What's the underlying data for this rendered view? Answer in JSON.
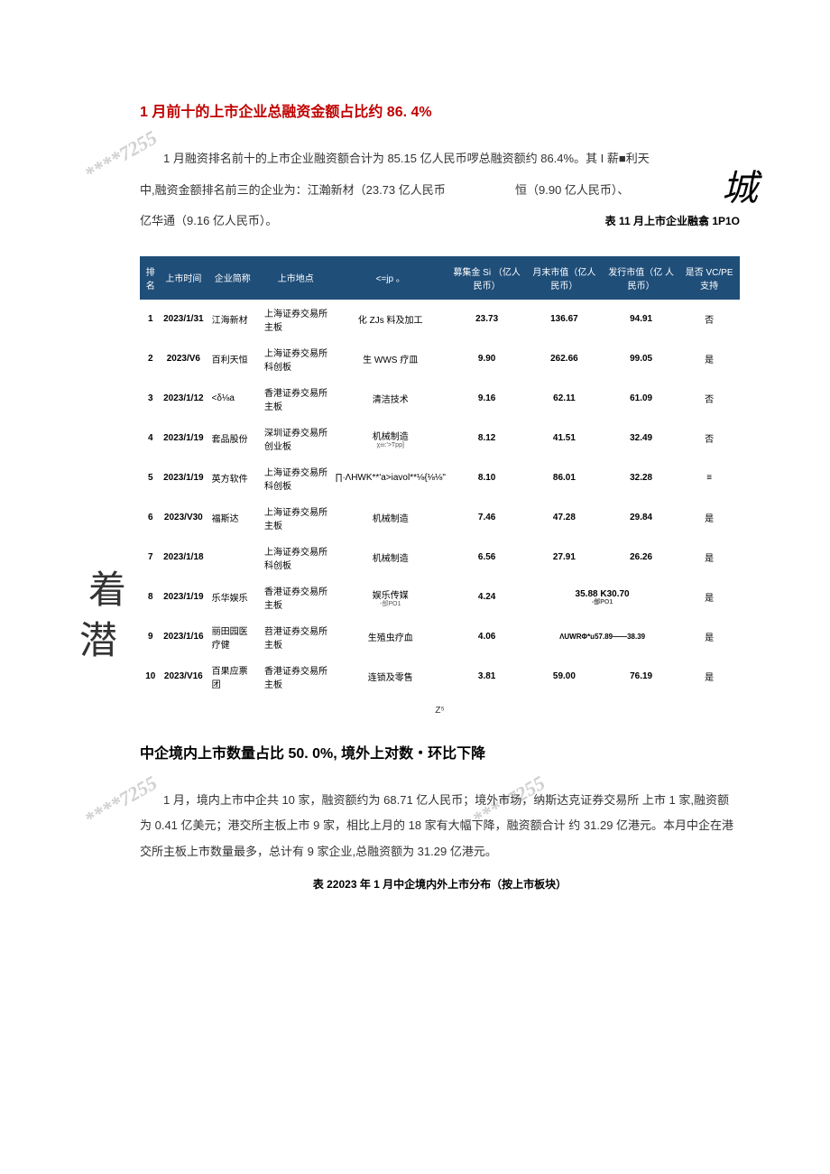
{
  "watermark_text": "****7255",
  "decor": {
    "city_glyph": "城",
    "zhuo_glyph": "着",
    "qian_glyph": "潜"
  },
  "section1": {
    "heading": "1 月前十的上市企业总融资金额占比约 86. 4%",
    "para1_a": "1 月融资排名前十的上市企业融资额合计为 85.15 亿人民币啰总融资额约 86.4%。其 I 薪■利天",
    "para1_b": "中,融资金额排名前三的企业为：江瀚新材（23.73 亿人民币",
    "para1_c": "恒（9.90 亿人民币）、",
    "para1_d": "亿华通（9.16 亿人民币）。",
    "table_caption": "表 11 月上市企业融翕 1P1O"
  },
  "table1": {
    "headers": [
      "排名",
      "上市时间",
      "企业简称",
      "上市地点",
      "<=jp\n。",
      "募集金 Si\n（亿人民币）",
      "月末市值（亿人\n民币）",
      "发行市值（亿\n人民币）",
      "是否\nVC/PE\n支持"
    ],
    "rows": [
      {
        "rank": "1",
        "date": "2023/1/31",
        "name": "江海新材",
        "exchange": "上海证券交易所主板",
        "industry": "化 ZJs 料及加工",
        "raise": "23.73",
        "mktcap": "136.67",
        "issuecap": "94.91",
        "vcpe": "否",
        "note": ""
      },
      {
        "rank": "2",
        "date": "2023/V6",
        "name": "百利天恒",
        "exchange": "上海证券交易所科创板",
        "industry": "生 WWS 疗皿",
        "raise": "9.90",
        "mktcap": "262.66",
        "issuecap": "99.05",
        "vcpe": "是",
        "note": ""
      },
      {
        "rank": "3",
        "date": "2023/1/12",
        "name": "<δ⅛a",
        "exchange": "香港证券交易所主板",
        "industry": "清洁技术",
        "raise": "9.16",
        "mktcap": "62.11",
        "issuecap": "61.09",
        "vcpe": "否",
        "note": ""
      },
      {
        "rank": "4",
        "date": "2023/1/19",
        "name": "套品股份",
        "exchange": "深圳证券交易所创业板",
        "industry": "机械制造",
        "raise": "8.12",
        "mktcap": "41.51",
        "issuecap": "32.49",
        "vcpe": "否",
        "note": "χ±ι:'>Tpp]"
      },
      {
        "rank": "5",
        "date": "2023/1/19",
        "name": "英方软件",
        "exchange": "上海证券交易所科创板",
        "industry": "∏∙ΛHWK**'a>iavol**⅛{⅛⅛\"",
        "raise": "8.10",
        "mktcap": "86.01",
        "issuecap": "32.28",
        "vcpe": "≡",
        "note": ""
      },
      {
        "rank": "6",
        "date": "2023/V30",
        "name": "福斯达",
        "exchange": "上海证券交易所主板",
        "industry": "机械制造",
        "raise": "7.46",
        "mktcap": "47.28",
        "issuecap": "29.84",
        "vcpe": "是",
        "note": ""
      },
      {
        "rank": "7",
        "date": "2023/1/18",
        "name": "",
        "exchange": "上海证券交易所科创板",
        "industry": "机械制造",
        "raise": "6.56",
        "mktcap": "27.91",
        "issuecap": "26.26",
        "vcpe": "是",
        "note": ""
      },
      {
        "rank": "8",
        "date": "2023/1/19",
        "name": "乐华娱乐",
        "exchange": "香港证券交易所主板",
        "industry": "娱乐传媒",
        "raise": "4.24",
        "mktcap": "35.88",
        "issuecap": "K30.70",
        "vcpe": "是",
        "note": "-郃PO1"
      },
      {
        "rank": "9",
        "date": "2023/1/16",
        "name": "丽田园医疗健",
        "exchange": "苕港证券交易所主板",
        "industry": "生殖虫疗血",
        "raise": "4.06",
        "mktcap": "ΛUWRΦ*u57.89——38.39",
        "issuecap": "",
        "vcpe": "是",
        "note": ""
      },
      {
        "rank": "10",
        "date": "2023/V16",
        "name": "百果应票团",
        "exchange": "香港证券交易所主板",
        "industry": "连锁及零售",
        "raise": "3.81",
        "mktcap": "59.00",
        "issuecap": "76.19",
        "vcpe": "是",
        "note": ""
      }
    ]
  },
  "footnote_z5": "Z⁵",
  "section2": {
    "heading": "中企境内上市数量占比 50. 0%, 境外上对数・环比下降",
    "para": "1 月，境内上市中企共 10 家，融资额约为 68.71 亿人民币；境外市场，纳斯达克证券交易所 上市 1 家,融资额为 0.41 亿美元；港交所主板上市 9 家，相比上月的 18 家有大幅下降，融资额合计 约 31.29 亿港元。本月中企在港交所主板上市数量最多，总计有 9 家企业,总融资额为 31.29 亿港元。",
    "caption": "表 22023 年 1 月中企境内外上市分布（按上市板块）"
  },
  "colors": {
    "header_bg": "#1f4e79",
    "header_fg": "#ffffff",
    "heading_red": "#c00000",
    "body_text": "#333333",
    "watermark": "#d0d0d0"
  }
}
